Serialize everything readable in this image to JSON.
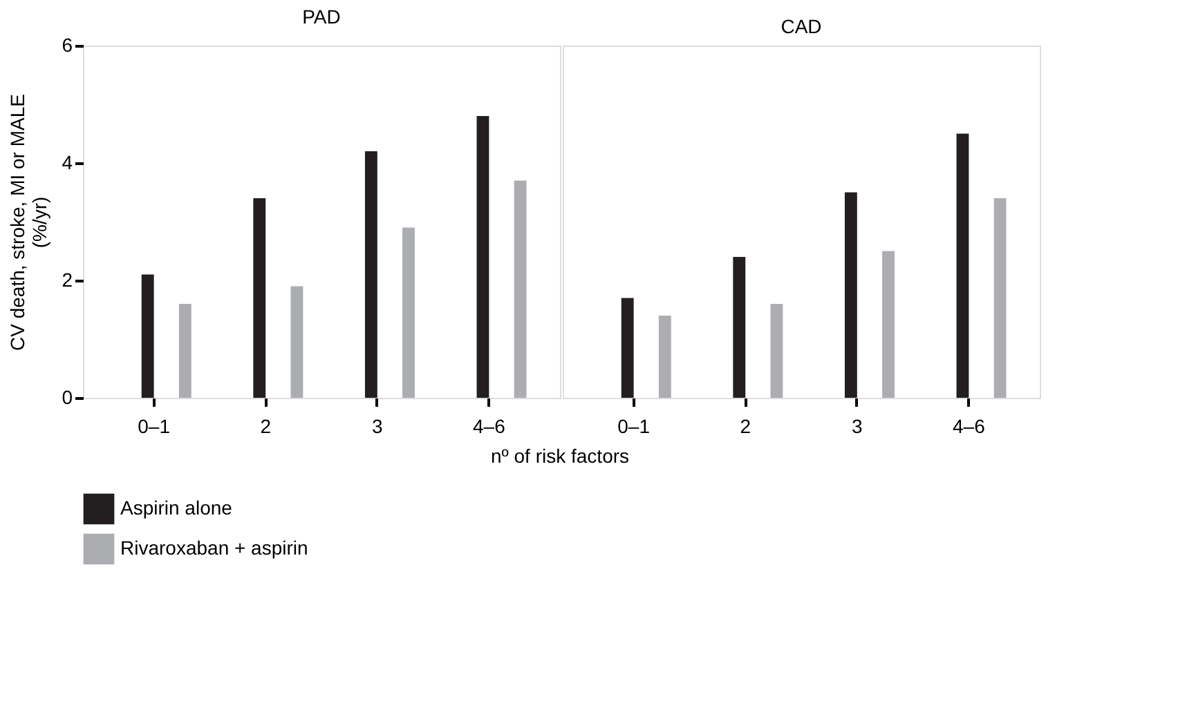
{
  "chart_data": [
    {
      "type": "bar",
      "title": "PAD",
      "ylabel": "CV death, stroke, MI or MALE\n(%/yr)",
      "xlabel": "nº of risk factors",
      "categories": [
        "0–1",
        "2",
        "3",
        "4–6"
      ],
      "series": [
        {
          "name": "Aspirin alone",
          "color": "#231f20",
          "values": [
            2.1,
            3.4,
            4.2,
            4.8
          ]
        },
        {
          "name": "Rivaroxaban + aspirin",
          "color": "#acadb0",
          "values": [
            1.6,
            1.9,
            2.9,
            3.7
          ]
        }
      ],
      "ylim": [
        0,
        6
      ],
      "yticks": [
        0,
        2,
        4,
        6
      ],
      "grid": false,
      "legend": "bottom"
    },
    {
      "type": "bar",
      "title": "CAD",
      "categories": [
        "0–1",
        "2",
        "3",
        "4–6"
      ],
      "series": [
        {
          "name": "Aspirin alone",
          "color": "#231f20",
          "values": [
            1.7,
            2.4,
            3.5,
            4.5
          ]
        },
        {
          "name": "Rivaroxaban + aspirin",
          "color": "#acadb0",
          "values": [
            1.4,
            1.6,
            2.5,
            3.4
          ]
        }
      ],
      "ylim": [
        0,
        6
      ],
      "yticks": [
        0,
        2,
        4,
        6
      ],
      "grid": false,
      "legend": "bottom",
      "tick_labels": "x"
    }
  ]
}
